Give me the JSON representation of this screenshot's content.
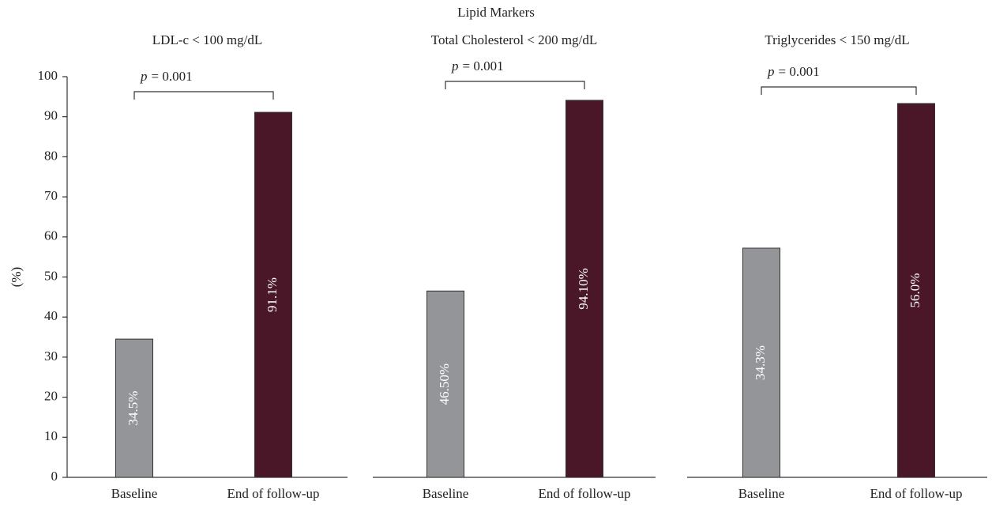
{
  "title": "Lipid Markers",
  "chart_data": [
    {
      "type": "bar",
      "title": "LDL-c < 100 mg/dL",
      "ylabel": "(%)",
      "categories": [
        "Baseline",
        "End of follow-up"
      ],
      "values": [
        34.5,
        91.1
      ],
      "value_labels": [
        "34.5%",
        "91.1%"
      ],
      "colors": [
        "#939598",
        "#4a1728"
      ],
      "ylim": [
        0,
        100
      ],
      "yticks": [
        0,
        10,
        20,
        30,
        40,
        50,
        60,
        70,
        80,
        90,
        100
      ],
      "annotation_symbol": "p",
      "annotation_text": "= 0.001"
    },
    {
      "type": "bar",
      "title": "Total Cholesterol < 200 mg/dL",
      "categories": [
        "Baseline",
        "End of follow-up"
      ],
      "values": [
        46.5,
        94.1
      ],
      "value_labels": [
        "46.50%",
        "94.10%"
      ],
      "colors": [
        "#939598",
        "#4a1728"
      ],
      "ylim": [
        0,
        100
      ],
      "annotation_symbol": "p",
      "annotation_text": "= 0.001"
    },
    {
      "type": "bar",
      "title": "Triglycerides < 150 mg/dL",
      "categories": [
        "Baseline",
        "End of follow-up"
      ],
      "values": [
        57.2,
        93.3
      ],
      "bar_annotations": [
        "34.3%",
        "56.0%"
      ],
      "colors": [
        "#939598",
        "#4a1728"
      ],
      "ylim": [
        0,
        100
      ],
      "annotation_symbol": "p",
      "annotation_text": "= 0.001"
    }
  ]
}
